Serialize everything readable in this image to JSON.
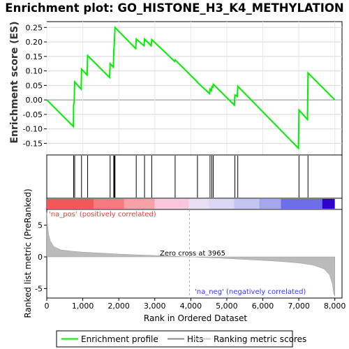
{
  "title": "Enrichment plot: GO_HISTONE_H3_K4_METHYLATION",
  "colors": {
    "enrichment_line": "#00ee00",
    "hits": "#000000",
    "ranked_fill": "#bbbbbb",
    "pos_label": "#ff3333",
    "neg_label": "#3333ff",
    "zero_line": "#aaaaaa"
  },
  "chart_data": [
    {
      "type": "line",
      "name": "enrichment-profile",
      "ylabel": "Enrichment score (ES)",
      "xlim": [
        0,
        8200
      ],
      "ylim": [
        -0.19,
        0.27
      ],
      "yticks": [
        -0.15,
        -0.1,
        -0.05,
        0.0,
        0.05,
        0.1,
        0.15,
        0.2,
        0.25
      ],
      "ytick_labels": [
        "-0.15",
        "-0.10",
        "-0.05",
        "0.00",
        "0.05",
        "0.10",
        "0.15",
        "0.20",
        "0.25"
      ],
      "grid": true,
      "points": [
        [
          0,
          0.0
        ],
        [
          740,
          -0.092
        ],
        [
          745,
          -0.018
        ],
        [
          760,
          -0.012
        ],
        [
          775,
          0.062
        ],
        [
          955,
          0.037
        ],
        [
          965,
          0.106
        ],
        [
          1120,
          0.086
        ],
        [
          1135,
          0.153
        ],
        [
          1745,
          0.077
        ],
        [
          1760,
          0.125
        ],
        [
          1850,
          0.113
        ],
        [
          1860,
          0.158
        ],
        [
          1880,
          0.207
        ],
        [
          1895,
          0.25
        ],
        [
          2470,
          0.177
        ],
        [
          2485,
          0.21
        ],
        [
          2700,
          0.187
        ],
        [
          2715,
          0.21
        ],
        [
          2900,
          0.187
        ],
        [
          2915,
          0.208
        ],
        [
          3550,
          0.133
        ],
        [
          3565,
          0.138
        ],
        [
          4175,
          0.063
        ],
        [
          4185,
          0.06
        ],
        [
          4520,
          0.022
        ],
        [
          4535,
          0.037
        ],
        [
          4570,
          0.032
        ],
        [
          4585,
          0.045
        ],
        [
          4610,
          0.043
        ],
        [
          4625,
          0.054
        ],
        [
          5210,
          -0.018
        ],
        [
          5225,
          0.017
        ],
        [
          5290,
          0.012
        ],
        [
          5305,
          0.047
        ],
        [
          6990,
          -0.167
        ],
        [
          7005,
          -0.035
        ],
        [
          7240,
          -0.068
        ],
        [
          7255,
          0.093
        ],
        [
          8000,
          0.0
        ]
      ]
    },
    {
      "type": "bar",
      "name": "hits",
      "x": [
        745,
        775,
        965,
        1135,
        1760,
        1860,
        1880,
        1895,
        2485,
        2715,
        2915,
        3565,
        4185,
        4535,
        4585,
        4625,
        5225,
        5305,
        7005,
        7255
      ]
    },
    {
      "type": "area",
      "name": "ranked-list-metric",
      "xlabel": "Rank in Ordered Dataset",
      "ylabel": "Ranked list metric (PreRanked)",
      "xlim": [
        0,
        8200
      ],
      "ylim": [
        -6.5,
        7.5
      ],
      "xticks": [
        0,
        1000,
        2000,
        3000,
        4000,
        5000,
        6000,
        7000,
        8000
      ],
      "xtick_labels": [
        "0",
        "1,000",
        "2,000",
        "3,000",
        "4,000",
        "5,000",
        "6,000",
        "7,000",
        "8,000"
      ],
      "yticks": [
        -5,
        0,
        5
      ],
      "ytick_labels": [
        "-5",
        "0",
        "5"
      ],
      "points": [
        [
          0,
          7.0
        ],
        [
          20,
          5.3
        ],
        [
          50,
          3.6
        ],
        [
          100,
          2.5
        ],
        [
          200,
          1.6
        ],
        [
          400,
          1.1
        ],
        [
          700,
          0.9
        ],
        [
          1000,
          0.75
        ],
        [
          1500,
          0.6
        ],
        [
          2000,
          0.45
        ],
        [
          2500,
          0.32
        ],
        [
          3000,
          0.22
        ],
        [
          3500,
          0.1
        ],
        [
          3965,
          0.0
        ],
        [
          4500,
          -0.12
        ],
        [
          5000,
          -0.25
        ],
        [
          5500,
          -0.4
        ],
        [
          6000,
          -0.55
        ],
        [
          6500,
          -0.72
        ],
        [
          7000,
          -0.95
        ],
        [
          7400,
          -1.3
        ],
        [
          7700,
          -1.9
        ],
        [
          7850,
          -2.8
        ],
        [
          7930,
          -4.2
        ],
        [
          7970,
          -5.8
        ],
        [
          8000,
          -6.2
        ]
      ],
      "annotations": {
        "zero_cross_text": "Zero cross at 3965",
        "zero_cross_x": 3965,
        "pos_text": "'na_pos' (positively correlated)",
        "neg_text": "'na_neg' (negatively correlated)"
      }
    }
  ],
  "heatbar": {
    "xmax": 8000,
    "segments": [
      {
        "from": 0,
        "to": 1300,
        "color": "#f0585a"
      },
      {
        "from": 1300,
        "to": 2150,
        "color": "#f5797f"
      },
      {
        "from": 2150,
        "to": 3000,
        "color": "#f8a0a8"
      },
      {
        "from": 3000,
        "to": 3950,
        "color": "#fbc6dc"
      },
      {
        "from": 3950,
        "to": 4500,
        "color": "#e8e0f2"
      },
      {
        "from": 4500,
        "to": 5200,
        "color": "#d8d8f6"
      },
      {
        "from": 5200,
        "to": 5900,
        "color": "#c4c4f4"
      },
      {
        "from": 5900,
        "to": 6500,
        "color": "#a6a6ef"
      },
      {
        "from": 6500,
        "to": 7650,
        "color": "#6d6de8"
      },
      {
        "from": 7650,
        "to": 8000,
        "color": "#3000cc"
      }
    ]
  },
  "legend": {
    "items": [
      {
        "label": "Enrichment profile",
        "color": "#00ee00"
      },
      {
        "label": "Hits",
        "color": "#888888"
      },
      {
        "label": "Ranking metric scores",
        "color": "#cccccc"
      }
    ]
  }
}
